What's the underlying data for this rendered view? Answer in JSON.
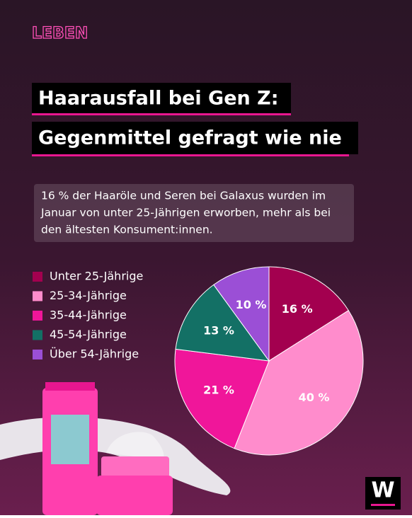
{
  "chart_data": {
    "type": "pie",
    "kicker": "LEBEN",
    "title_lines": [
      "Haarausfall bei Gen Z:",
      "Gegenmittel gefragt wie nie"
    ],
    "subtitle_lines": [
      "16 % der Haaröle und Seren bei Galaxus wurden im",
      "Januar von unter 25-Jährigen erworben, mehr als bei",
      "den ältesten Konsument:innen."
    ],
    "categories": [
      "Unter 25-Jährige",
      "25-34-Jährige",
      "35-44-Jährige",
      "45-54-Jährige",
      "Über 54-Jährige"
    ],
    "values": [
      16,
      40,
      21,
      13,
      10
    ],
    "value_labels": [
      "16 %",
      "40 %",
      "21 %",
      "13 %",
      "10 %"
    ],
    "colors": [
      "#a3004f",
      "#ff8ccc",
      "#f0169a",
      "#137065",
      "#9b4fd6"
    ],
    "logo": "W"
  }
}
